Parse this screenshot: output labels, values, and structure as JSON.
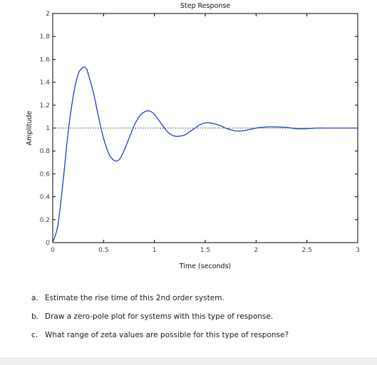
{
  "chart_data": {
    "type": "line",
    "title": "Step Response",
    "xlabel": "Time (seconds)",
    "ylabel": "Amplitude",
    "xlim": [
      0,
      3
    ],
    "ylim": [
      0,
      2
    ],
    "x_ticks": [
      0,
      0.5,
      1,
      1.5,
      2,
      2.5,
      3
    ],
    "x_tick_labels": [
      "0",
      "0.5",
      "1",
      "1.5",
      "2",
      "2.5",
      "3"
    ],
    "y_ticks": [
      0,
      0.2,
      0.4,
      0.6,
      0.8,
      1,
      1.2,
      1.4,
      1.6,
      1.8,
      2
    ],
    "y_tick_labels": [
      "0",
      "0.2",
      "0.4",
      "0.6",
      "0.8",
      "1",
      "1.2",
      "1.4",
      "1.6",
      "1.8",
      "2"
    ],
    "grid": false,
    "reference_line": {
      "y": 1,
      "style": "dotted"
    },
    "series": [
      {
        "color": "#1f3ed6",
        "x": [
          0,
          0.05,
          0.1,
          0.15,
          0.2,
          0.25,
          0.3,
          0.33,
          0.35,
          0.4,
          0.45,
          0.5,
          0.55,
          0.6,
          0.65,
          0.7,
          0.75,
          0.8,
          0.85,
          0.9,
          0.95,
          1.0,
          1.05,
          1.1,
          1.15,
          1.2,
          1.25,
          1.3,
          1.35,
          1.4,
          1.45,
          1.5,
          1.55,
          1.6,
          1.65,
          1.7,
          1.75,
          1.8,
          1.85,
          1.9,
          1.95,
          2.0,
          2.1,
          2.2,
          2.3,
          2.4,
          2.5,
          2.6,
          2.7,
          2.8,
          2.9,
          3.0
        ],
        "y": [
          0,
          0.15,
          0.52,
          0.95,
          1.27,
          1.47,
          1.53,
          1.52,
          1.47,
          1.31,
          1.1,
          0.91,
          0.78,
          0.72,
          0.72,
          0.8,
          0.91,
          1.02,
          1.1,
          1.14,
          1.15,
          1.12,
          1.06,
          1.0,
          0.95,
          0.93,
          0.93,
          0.94,
          0.97,
          1.0,
          1.03,
          1.045,
          1.045,
          1.035,
          1.02,
          1.0,
          0.985,
          0.975,
          0.975,
          0.98,
          0.99,
          1.0,
          1.01,
          1.01,
          1.005,
          0.995,
          0.995,
          1.0,
          1.0,
          1.0,
          1.0,
          1.0
        ]
      }
    ]
  },
  "questions": [
    {
      "letter": "a.",
      "text": "Estimate the rise time of this 2nd order system."
    },
    {
      "letter": "b.",
      "text": "Draw a zero-pole plot for systems with this type of response."
    },
    {
      "letter": "c.",
      "text": "What range of zeta values are possible for this type of response?"
    }
  ],
  "colors": {
    "line": "#1f3ed6",
    "reference": "#333333",
    "axes": "#000000"
  }
}
